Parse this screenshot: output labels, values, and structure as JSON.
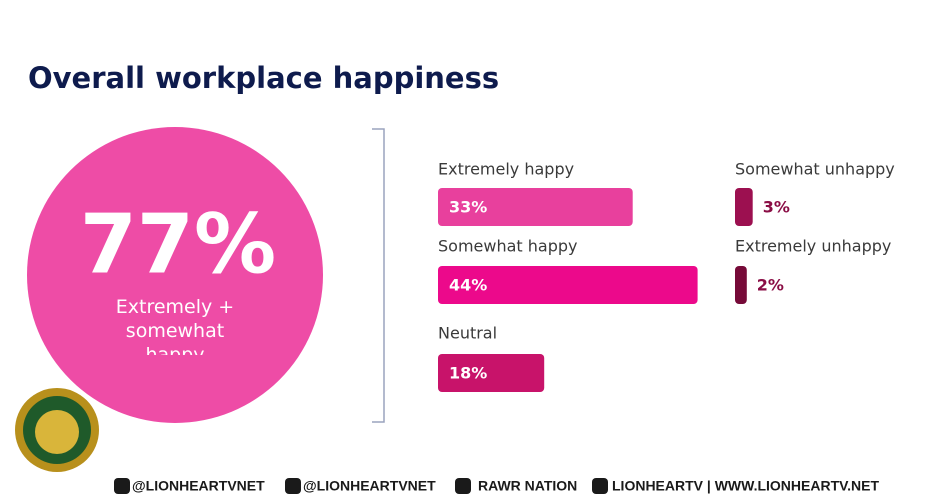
{
  "chart_data": {
    "type": "bar",
    "title": "Overall workplace happiness",
    "summary": {
      "value": 77,
      "value_label": "77%",
      "text": "Extremely + somewhat happy"
    },
    "categories": [
      "Extremely happy",
      "Somewhat happy",
      "Neutral",
      "Somewhat unhappy",
      "Extremely unhappy"
    ],
    "values": [
      33,
      44,
      18,
      3,
      2
    ],
    "value_labels": [
      "33%",
      "44%",
      "18%",
      "3%",
      "2%"
    ],
    "colors": [
      "#e8409d",
      "#ec098b",
      "#c8136a",
      "#9c1050",
      "#760a38"
    ],
    "summary_color": "#ee4ca6"
  },
  "footer": {
    "items": [
      "@LIONHEARTVNET",
      "@LIONHEARTVNET",
      "RAWR NATION",
      "LIONHEARTV | WWW.LIONHEARTV.NET"
    ]
  }
}
